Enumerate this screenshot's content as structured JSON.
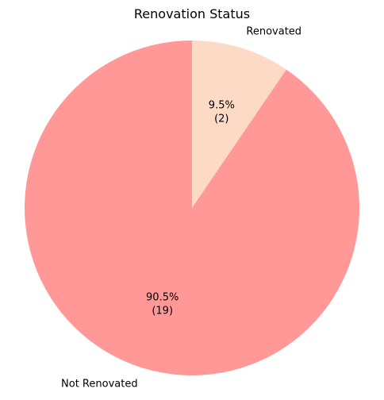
{
  "chart_data": {
    "type": "pie",
    "title": "Renovation Status",
    "categories": [
      "Renovated",
      "Not Renovated"
    ],
    "values": [
      2,
      19
    ],
    "percent_labels": [
      "9.5%",
      "90.5%"
    ],
    "count_labels": [
      "(2)",
      "(19)"
    ],
    "colors": [
      "#fddac6",
      "#ff9896"
    ],
    "start_angle_deg": 90,
    "direction": "clockwise"
  }
}
